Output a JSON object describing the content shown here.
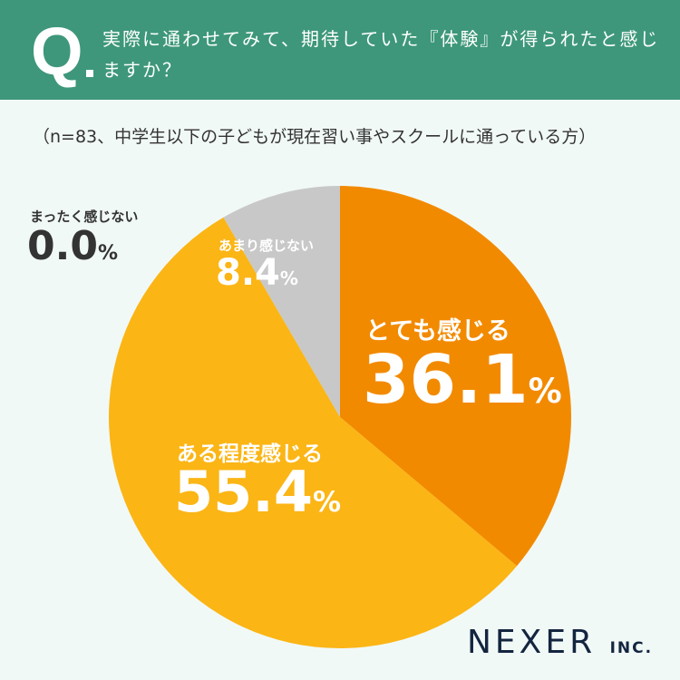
{
  "header": {
    "q": "Q",
    "title": "実際に通わせてみて、期待していた『体験』が得られたと感じますか？"
  },
  "note": "（n=83、中学生以下の子どもが現在習い事やスクールに通っている方）",
  "logo": {
    "main": "NEXER",
    "sub": "INC."
  },
  "chart_data": {
    "type": "pie",
    "start": "top",
    "direction": "clockwise",
    "categories": [
      "とても感じる",
      "ある程度感じる",
      "あまり感じない",
      "まったく感じない"
    ],
    "values": [
      36.1,
      55.4,
      8.4,
      0.0
    ],
    "labels": [
      "36.1",
      "55.4",
      "8.4",
      "0.0"
    ],
    "unit": "%",
    "colors": [
      "#f28a00",
      "#fbb515",
      "#c8c8c8",
      "#999999"
    ]
  }
}
